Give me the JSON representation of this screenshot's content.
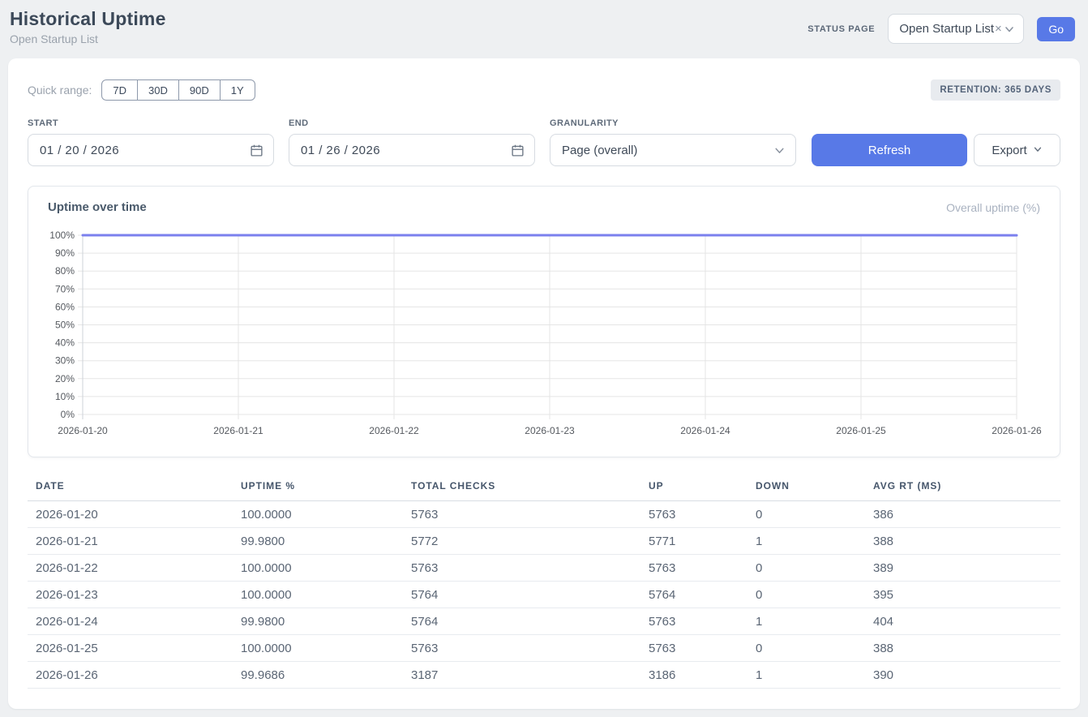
{
  "header": {
    "title": "Historical Uptime",
    "subtitle": "Open Startup List",
    "status_page_label": "STATUS PAGE",
    "status_page_value": "Open Startup List",
    "clear_icon": "×",
    "go_label": "Go"
  },
  "controls": {
    "quick_range_label": "Quick range:",
    "quick_ranges": [
      "7D",
      "30D",
      "90D",
      "1Y"
    ],
    "retention_badge": "RETENTION: 365 DAYS",
    "start_label": "START",
    "start_value": "01 / 20 / 2026",
    "end_label": "END",
    "end_value": "01 / 26 / 2026",
    "granularity_label": "GRANULARITY",
    "granularity_value": "Page (overall)",
    "refresh_label": "Refresh",
    "export_label": "Export"
  },
  "chart": {
    "title": "Uptime over time",
    "legend": "Overall uptime (%)"
  },
  "chart_data": {
    "type": "line",
    "title": "Uptime over time",
    "x": [
      "2026-01-20",
      "2026-01-21",
      "2026-01-22",
      "2026-01-23",
      "2026-01-24",
      "2026-01-25",
      "2026-01-26"
    ],
    "series": [
      {
        "name": "Overall uptime (%)",
        "values": [
          100.0,
          99.98,
          100.0,
          100.0,
          99.98,
          100.0,
          99.9686
        ]
      }
    ],
    "ylim": [
      0,
      100
    ],
    "y_ticks": [
      "100%",
      "90%",
      "80%",
      "70%",
      "60%",
      "50%",
      "40%",
      "30%",
      "20%",
      "10%",
      "0%"
    ],
    "grid": true,
    "legend_position": "top-right",
    "line_color": "#7b80ee"
  },
  "table": {
    "columns": [
      "DATE",
      "UPTIME %",
      "TOTAL CHECKS",
      "UP",
      "DOWN",
      "AVG RT (MS)"
    ],
    "rows": [
      [
        "2026-01-20",
        "100.0000",
        "5763",
        "5763",
        "0",
        "386"
      ],
      [
        "2026-01-21",
        "99.9800",
        "5772",
        "5771",
        "1",
        "388"
      ],
      [
        "2026-01-22",
        "100.0000",
        "5763",
        "5763",
        "0",
        "389"
      ],
      [
        "2026-01-23",
        "100.0000",
        "5764",
        "5764",
        "0",
        "395"
      ],
      [
        "2026-01-24",
        "99.9800",
        "5764",
        "5763",
        "1",
        "404"
      ],
      [
        "2026-01-25",
        "100.0000",
        "5763",
        "5763",
        "0",
        "388"
      ],
      [
        "2026-01-26",
        "99.9686",
        "3187",
        "3186",
        "1",
        "390"
      ]
    ]
  },
  "colors": {
    "accent_blue": "#5879e7",
    "line_indigo": "#7b80ee",
    "page_bg": "#eef0f2",
    "grid_line": "#e5e5e5"
  }
}
